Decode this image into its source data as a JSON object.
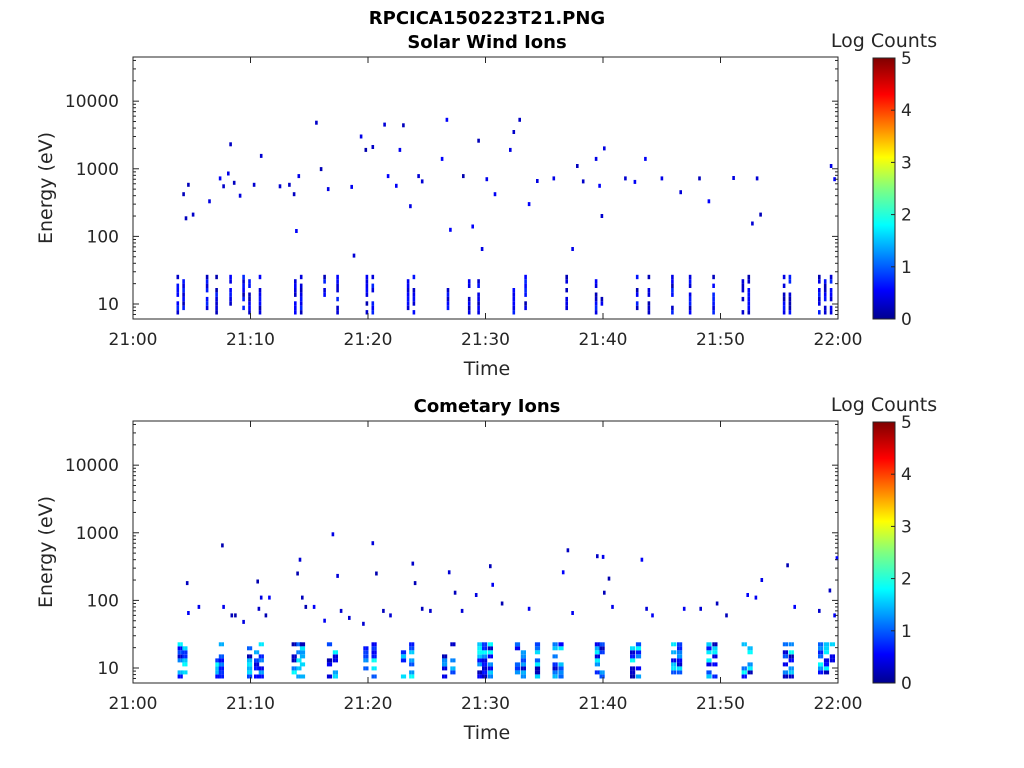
{
  "figure": {
    "title": "RPCICA150223T21.PNG"
  },
  "colorbar": {
    "label": "Log Counts",
    "ticks": [
      "0",
      "1",
      "2",
      "3",
      "4",
      "5"
    ],
    "range": [
      0,
      5
    ],
    "colormap": "jet"
  },
  "chart_data": [
    {
      "type": "heatmap",
      "title": "Solar Wind Ions",
      "xlabel": "Time",
      "ylabel": "Energy (eV)",
      "xticks": [
        "21:00",
        "21:10",
        "21:20",
        "21:30",
        "21:40",
        "21:50",
        "22:00"
      ],
      "xlim_minutes": [
        0,
        60
      ],
      "yscale": "log",
      "ylim": [
        6,
        45000
      ],
      "yticks": [
        {
          "value": 10,
          "label": "10"
        },
        {
          "value": 100,
          "label": "100"
        },
        {
          "value": 1000,
          "label": "1000"
        },
        {
          "value": 10000,
          "label": "10000"
        }
      ],
      "colorbar_label": "Log Counts",
      "colorbar_range": [
        0,
        5
      ],
      "bursts_minutes": [
        3.7,
        4.2,
        6.2,
        7.0,
        8.2,
        9.3,
        9.8,
        10.7,
        13.7,
        14.2,
        16.2,
        17.3,
        19.8,
        20.3,
        23.3,
        23.8,
        26.7,
        28.5,
        29.3,
        32.3,
        33.3,
        36.8,
        39.3,
        39.8,
        42.8,
        43.8,
        45.8,
        47.3,
        49.3,
        51.8,
        52.3,
        55.3,
        55.8,
        58.3,
        58.8,
        59.3
      ],
      "low_energy_band_eV": [
        7,
        27
      ],
      "scattered_points": [
        {
          "t": 4.2,
          "e": 420
        },
        {
          "t": 4.6,
          "e": 580
        },
        {
          "t": 4.4,
          "e": 185
        },
        {
          "t": 5.0,
          "e": 210
        },
        {
          "t": 7.3,
          "e": 720
        },
        {
          "t": 7.6,
          "e": 550
        },
        {
          "t": 8.0,
          "e": 850
        },
        {
          "t": 8.5,
          "e": 620
        },
        {
          "t": 8.2,
          "e": 2300
        },
        {
          "t": 6.4,
          "e": 330
        },
        {
          "t": 9.0,
          "e": 400
        },
        {
          "t": 10.2,
          "e": 580
        },
        {
          "t": 10.8,
          "e": 1550
        },
        {
          "t": 12.4,
          "e": 550
        },
        {
          "t": 13.2,
          "e": 580
        },
        {
          "t": 13.6,
          "e": 420
        },
        {
          "t": 13.8,
          "e": 120
        },
        {
          "t": 14.0,
          "e": 780
        },
        {
          "t": 15.5,
          "e": 4800
        },
        {
          "t": 15.9,
          "e": 990
        },
        {
          "t": 16.5,
          "e": 500
        },
        {
          "t": 18.5,
          "e": 540
        },
        {
          "t": 18.7,
          "e": 52
        },
        {
          "t": 19.3,
          "e": 3000
        },
        {
          "t": 19.7,
          "e": 1900
        },
        {
          "t": 20.3,
          "e": 2100
        },
        {
          "t": 21.3,
          "e": 4500
        },
        {
          "t": 21.6,
          "e": 780
        },
        {
          "t": 22.3,
          "e": 560
        },
        {
          "t": 22.6,
          "e": 1900
        },
        {
          "t": 22.9,
          "e": 4400
        },
        {
          "t": 23.5,
          "e": 280
        },
        {
          "t": 24.2,
          "e": 780
        },
        {
          "t": 24.5,
          "e": 650
        },
        {
          "t": 26.2,
          "e": 1400
        },
        {
          "t": 26.6,
          "e": 5300
        },
        {
          "t": 26.9,
          "e": 125
        },
        {
          "t": 28.0,
          "e": 780
        },
        {
          "t": 28.8,
          "e": 140
        },
        {
          "t": 29.3,
          "e": 2600
        },
        {
          "t": 29.6,
          "e": 65
        },
        {
          "t": 30.0,
          "e": 700
        },
        {
          "t": 30.7,
          "e": 420
        },
        {
          "t": 32.0,
          "e": 1900
        },
        {
          "t": 32.3,
          "e": 3500
        },
        {
          "t": 32.8,
          "e": 5300
        },
        {
          "t": 33.6,
          "e": 300
        },
        {
          "t": 34.3,
          "e": 660
        },
        {
          "t": 35.7,
          "e": 720
        },
        {
          "t": 37.3,
          "e": 65
        },
        {
          "t": 37.7,
          "e": 1100
        },
        {
          "t": 38.2,
          "e": 650
        },
        {
          "t": 39.3,
          "e": 1400
        },
        {
          "t": 39.6,
          "e": 560
        },
        {
          "t": 40.0,
          "e": 2000
        },
        {
          "t": 39.8,
          "e": 200
        },
        {
          "t": 41.8,
          "e": 720
        },
        {
          "t": 42.6,
          "e": 640
        },
        {
          "t": 43.5,
          "e": 1400
        },
        {
          "t": 44.9,
          "e": 720
        },
        {
          "t": 46.5,
          "e": 450
        },
        {
          "t": 48.1,
          "e": 720
        },
        {
          "t": 48.9,
          "e": 330
        },
        {
          "t": 51.0,
          "e": 730
        },
        {
          "t": 52.6,
          "e": 155
        },
        {
          "t": 53.0,
          "e": 720
        },
        {
          "t": 53.3,
          "e": 210
        },
        {
          "t": 59.3,
          "e": 1100
        },
        {
          "t": 59.6,
          "e": 700
        }
      ]
    },
    {
      "type": "heatmap",
      "title": "Cometary Ions",
      "xlabel": "Time",
      "ylabel": "Energy (eV)",
      "xticks": [
        "21:00",
        "21:10",
        "21:20",
        "21:30",
        "21:40",
        "21:50",
        "22:00"
      ],
      "xlim_minutes": [
        0,
        60
      ],
      "yscale": "log",
      "ylim": [
        6,
        45000
      ],
      "yticks": [
        {
          "value": 10,
          "label": "10"
        },
        {
          "value": 100,
          "label": "100"
        },
        {
          "value": 1000,
          "label": "1000"
        },
        {
          "value": 10000,
          "label": "10000"
        }
      ],
      "colorbar_label": "Log Counts",
      "colorbar_range": [
        0,
        5
      ],
      "bursts_minutes": [
        3.8,
        4.2,
        7.0,
        7.3,
        9.7,
        10.3,
        10.7,
        13.5,
        13.9,
        14.2,
        16.5,
        17.0,
        19.6,
        20.3,
        22.8,
        23.5,
        26.3,
        27.0,
        29.3,
        29.7,
        30.2,
        32.5,
        33.0,
        34.2,
        35.7,
        36.2,
        39.3,
        39.7,
        42.3,
        42.8,
        45.8,
        46.3,
        48.8,
        49.3,
        51.8,
        52.3,
        55.3,
        55.8,
        58.3,
        58.8,
        59.3
      ],
      "low_energy_band_eV": [
        7,
        24
      ],
      "scattered_points": [
        {
          "t": 4.5,
          "e": 180
        },
        {
          "t": 4.6,
          "e": 65
        },
        {
          "t": 5.5,
          "e": 80
        },
        {
          "t": 7.5,
          "e": 650
        },
        {
          "t": 7.6,
          "e": 80
        },
        {
          "t": 8.3,
          "e": 60
        },
        {
          "t": 8.6,
          "e": 60
        },
        {
          "t": 9.3,
          "e": 48
        },
        {
          "t": 10.5,
          "e": 190
        },
        {
          "t": 10.8,
          "e": 110
        },
        {
          "t": 10.6,
          "e": 75
        },
        {
          "t": 11.2,
          "e": 60
        },
        {
          "t": 11.5,
          "e": 110
        },
        {
          "t": 13.9,
          "e": 250
        },
        {
          "t": 14.1,
          "e": 400
        },
        {
          "t": 14.3,
          "e": 110
        },
        {
          "t": 14.6,
          "e": 80
        },
        {
          "t": 15.3,
          "e": 80
        },
        {
          "t": 16.2,
          "e": 50
        },
        {
          "t": 16.9,
          "e": 950
        },
        {
          "t": 17.3,
          "e": 230
        },
        {
          "t": 17.6,
          "e": 70
        },
        {
          "t": 18.3,
          "e": 55
        },
        {
          "t": 19.5,
          "e": 45
        },
        {
          "t": 20.3,
          "e": 700
        },
        {
          "t": 20.6,
          "e": 250
        },
        {
          "t": 21.2,
          "e": 70
        },
        {
          "t": 21.8,
          "e": 60
        },
        {
          "t": 23.7,
          "e": 350
        },
        {
          "t": 23.9,
          "e": 180
        },
        {
          "t": 24.5,
          "e": 75
        },
        {
          "t": 25.2,
          "e": 70
        },
        {
          "t": 26.8,
          "e": 260
        },
        {
          "t": 27.3,
          "e": 130
        },
        {
          "t": 27.9,
          "e": 70
        },
        {
          "t": 29.1,
          "e": 120
        },
        {
          "t": 30.3,
          "e": 320
        },
        {
          "t": 30.5,
          "e": 170
        },
        {
          "t": 31.3,
          "e": 90
        },
        {
          "t": 33.6,
          "e": 75
        },
        {
          "t": 36.5,
          "e": 260
        },
        {
          "t": 36.9,
          "e": 550
        },
        {
          "t": 37.3,
          "e": 65
        },
        {
          "t": 39.4,
          "e": 450
        },
        {
          "t": 39.9,
          "e": 440
        },
        {
          "t": 40.0,
          "e": 130
        },
        {
          "t": 40.4,
          "e": 210
        },
        {
          "t": 40.7,
          "e": 80
        },
        {
          "t": 43.2,
          "e": 400
        },
        {
          "t": 43.6,
          "e": 75
        },
        {
          "t": 44.1,
          "e": 60
        },
        {
          "t": 46.8,
          "e": 75
        },
        {
          "t": 48.2,
          "e": 75
        },
        {
          "t": 49.6,
          "e": 90
        },
        {
          "t": 50.4,
          "e": 60
        },
        {
          "t": 52.2,
          "e": 120
        },
        {
          "t": 52.9,
          "e": 110
        },
        {
          "t": 53.4,
          "e": 200
        },
        {
          "t": 55.6,
          "e": 330
        },
        {
          "t": 56.2,
          "e": 80
        },
        {
          "t": 58.3,
          "e": 70
        },
        {
          "t": 59.2,
          "e": 140
        },
        {
          "t": 59.8,
          "e": 420
        },
        {
          "t": 59.6,
          "e": 60
        }
      ]
    }
  ]
}
